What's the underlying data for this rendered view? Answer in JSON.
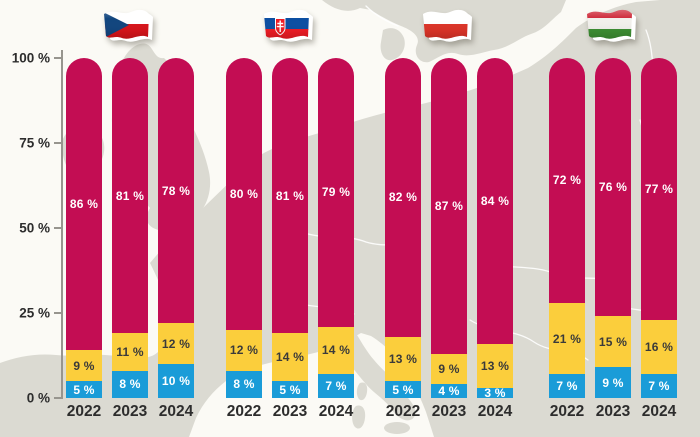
{
  "chart_data": {
    "type": "bar",
    "stacked": true,
    "unit": "%",
    "title": "",
    "ylim": [
      0,
      100
    ],
    "grid": false,
    "legend": "none",
    "background": "europe-map",
    "y_ticks": [
      {
        "value": 100,
        "label": "100 %"
      },
      {
        "value": 75,
        "label": "75 %"
      },
      {
        "value": 50,
        "label": "50 %"
      },
      {
        "value": 25,
        "label": "25 %"
      },
      {
        "value": 0,
        "label": "0 %"
      }
    ],
    "segment_order_bottom_to_top": [
      "blue",
      "yellow",
      "red"
    ],
    "groups": [
      {
        "country": "Czech Republic",
        "flag_icon": "czech-flag-icon",
        "bars": [
          {
            "year": "2022",
            "segments": {
              "blue": 5,
              "yellow": 9,
              "red": 86
            },
            "labels": {
              "blue": "5 %",
              "yellow": "9 %",
              "red": "86 %"
            }
          },
          {
            "year": "2023",
            "segments": {
              "blue": 8,
              "yellow": 11,
              "red": 81
            },
            "labels": {
              "blue": "8 %",
              "yellow": "11 %",
              "red": "81 %"
            }
          },
          {
            "year": "2024",
            "segments": {
              "blue": 10,
              "yellow": 12,
              "red": 78
            },
            "labels": {
              "blue": "10 %",
              "yellow": "12 %",
              "red": "78 %"
            }
          }
        ]
      },
      {
        "country": "Slovakia",
        "flag_icon": "slovakia-flag-icon",
        "bars": [
          {
            "year": "2022",
            "segments": {
              "blue": 8,
              "yellow": 12,
              "red": 80
            },
            "labels": {
              "blue": "8 %",
              "yellow": "12 %",
              "red": "80 %"
            }
          },
          {
            "year": "2023",
            "segments": {
              "blue": 5,
              "yellow": 14,
              "red": 81
            },
            "labels": {
              "blue": "5 %",
              "yellow": "14 %",
              "red": "81 %"
            }
          },
          {
            "year": "2024",
            "segments": {
              "blue": 7,
              "yellow": 14,
              "red": 79
            },
            "labels": {
              "blue": "7 %",
              "yellow": "14 %",
              "red": "79 %"
            }
          }
        ]
      },
      {
        "country": "Poland",
        "flag_icon": "poland-flag-icon",
        "bars": [
          {
            "year": "2022",
            "segments": {
              "blue": 5,
              "yellow": 13,
              "red": 82
            },
            "labels": {
              "blue": "5 %",
              "yellow": "13 %",
              "red": "82 %"
            }
          },
          {
            "year": "2023",
            "segments": {
              "blue": 4,
              "yellow": 9,
              "red": 87
            },
            "labels": {
              "blue": "4 %",
              "yellow": "9 %",
              "red": "87 %"
            }
          },
          {
            "year": "2024",
            "segments": {
              "blue": 3,
              "yellow": 13,
              "red": 84
            },
            "labels": {
              "blue": "3 %",
              "yellow": "13 %",
              "red": "84 %"
            }
          }
        ]
      },
      {
        "country": "Hungary",
        "flag_icon": "hungary-flag-icon",
        "bars": [
          {
            "year": "2022",
            "segments": {
              "blue": 7,
              "yellow": 21,
              "red": 72
            },
            "labels": {
              "blue": "7 %",
              "yellow": "21 %",
              "red": "72 %"
            }
          },
          {
            "year": "2023",
            "segments": {
              "blue": 9,
              "yellow": 15,
              "red": 76
            },
            "labels": {
              "blue": "9 %",
              "yellow": "15 %",
              "red": "76 %"
            }
          },
          {
            "year": "2024",
            "segments": {
              "blue": 7,
              "yellow": 16,
              "red": 77
            },
            "labels": {
              "blue": "7 %",
              "yellow": "16 %",
              "red": "77 %"
            }
          }
        ]
      }
    ]
  },
  "colors": {
    "bar_red": "#C30D53",
    "bar_yellow": "#FBCE3C",
    "bar_blue": "#1A9CD8",
    "label_on_red": "#FFFFFF",
    "label_on_yellow": "#3A3A3A",
    "label_on_blue": "#FFFFFF",
    "axis": "#97958E",
    "text_dark": "#2D2D2D",
    "map_land": "#DBDAD2",
    "map_ocean": "#FBFAF5",
    "map_border": "#FFFFFF"
  }
}
